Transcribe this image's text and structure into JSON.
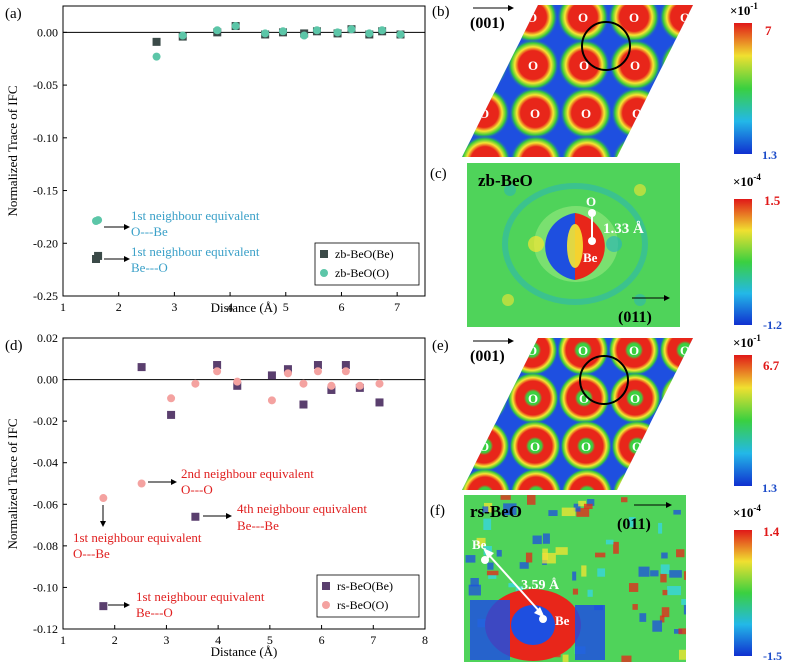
{
  "chart_data": [
    {
      "type": "scatter",
      "panel_label": "(a)",
      "xlabel": "Distance (Å)",
      "ylabel": "Normalized Trace of IFC",
      "xlim": [
        1,
        7.5
      ],
      "ylim": [
        -0.25,
        0.025
      ],
      "x_ticks": [
        "1",
        "2",
        "3",
        "4",
        "5",
        "6",
        "7"
      ],
      "x_tick_values": [
        1,
        2,
        3,
        4,
        5,
        6,
        7
      ],
      "y_ticks": [
        "-0.25",
        "-0.20",
        "-0.15",
        "-0.10",
        "-0.05",
        "0.00"
      ],
      "y_tick_values": [
        -0.25,
        -0.2,
        -0.15,
        -0.1,
        -0.05,
        0.0
      ],
      "legend_position": "lower-right",
      "series": [
        {
          "name": "zb-BeO(Be)",
          "marker": "square",
          "color": "#3b4a48",
          "x": [
            1.63,
            2.68,
            3.15,
            3.77,
            4.1,
            4.63,
            4.95,
            5.33,
            5.56,
            5.93,
            6.18,
            6.5,
            6.73,
            7.06
          ],
          "y": [
            -0.212,
            -0.009,
            -0.004,
            0.0,
            0.006,
            -0.002,
            0.0,
            -0.001,
            0.001,
            -0.001,
            0.003,
            -0.002,
            0.001,
            -0.002
          ]
        },
        {
          "name": "zb-BeO(O)",
          "marker": "circle",
          "color": "#5cc6a8",
          "x": [
            1.63,
            2.68,
            3.15,
            3.77,
            4.1,
            4.63,
            4.95,
            5.33,
            5.56,
            5.93,
            6.18,
            6.5,
            6.73,
            7.06
          ],
          "y": [
            -0.178,
            -0.023,
            -0.003,
            0.002,
            0.006,
            -0.001,
            0.001,
            -0.003,
            0.002,
            0.0,
            0.003,
            -0.001,
            0.002,
            -0.002
          ]
        }
      ],
      "annotations": [
        {
          "line1": "1st neighbour equivalent",
          "line2": "O---Be",
          "color": "#3aa0c8",
          "line2_color": "#3aa0c8"
        },
        {
          "line1": "1st neighbour equivalent",
          "line2": "Be---O",
          "color": "#3aa0c8",
          "line2_color": "#3aa0c8"
        }
      ]
    },
    {
      "type": "scatter",
      "panel_label": "(d)",
      "xlabel": "Distance (Å)",
      "ylabel": "Normalized Trace of IFC",
      "xlim": [
        1,
        8
      ],
      "ylim": [
        -0.12,
        0.02
      ],
      "x_ticks": [
        "1",
        "2",
        "3",
        "4",
        "5",
        "6",
        "7",
        "8"
      ],
      "x_tick_values": [
        1,
        2,
        3,
        4,
        5,
        6,
        7,
        8
      ],
      "y_ticks": [
        "-0.12",
        "-0.10",
        "-0.08",
        "-0.06",
        "-0.04",
        "-0.02",
        "0.00",
        "0.02"
      ],
      "y_tick_values": [
        -0.12,
        -0.1,
        -0.08,
        -0.06,
        -0.04,
        -0.02,
        0.0,
        0.02
      ],
      "legend_position": "lower-right",
      "series": [
        {
          "name": "rs-BeO(Be)",
          "marker": "square",
          "color": "#5a3f6e",
          "x": [
            1.78,
            2.52,
            3.09,
            3.56,
            3.98,
            4.37,
            5.04,
            5.35,
            5.65,
            5.93,
            6.19,
            6.47,
            6.74,
            7.12
          ],
          "y": [
            -0.109,
            0.006,
            -0.017,
            -0.066,
            0.007,
            -0.003,
            0.002,
            0.005,
            -0.012,
            0.007,
            -0.005,
            0.007,
            -0.004,
            -0.011
          ]
        },
        {
          "name": "rs-BeO(O)",
          "marker": "circle",
          "color": "#f4a2a0",
          "x": [
            1.78,
            2.52,
            3.09,
            3.56,
            3.98,
            4.37,
            5.04,
            5.35,
            5.65,
            5.93,
            6.19,
            6.47,
            6.74,
            7.12
          ],
          "y": [
            -0.057,
            -0.05,
            -0.009,
            -0.002,
            0.004,
            -0.001,
            -0.01,
            0.003,
            -0.002,
            0.004,
            -0.003,
            0.004,
            -0.003,
            -0.002
          ]
        }
      ],
      "annotations": [
        {
          "line1": "2nd neighbour equivalent",
          "line2": "O---O",
          "color": "#e02020"
        },
        {
          "line1": "4th neighbour equivalent",
          "line2": "Be---Be",
          "color": "#e02020"
        },
        {
          "line1": "1st neighbour equivalent",
          "line2": "O---Be",
          "color": "#e02020"
        },
        {
          "line1": "1st neighbour equivalent",
          "line2": "Be---O",
          "color": "#e02020"
        }
      ]
    }
  ],
  "panels": {
    "b": {
      "label": "(b)",
      "direction": "(001)",
      "scale_exp": "×10",
      "scale_exp_power": "-1",
      "scale_max": "7",
      "scale_min": "1.3",
      "atom": "O"
    },
    "c": {
      "label": "(c)",
      "title": "zb-BeO",
      "direction": "(011)",
      "scale_exp": "×10",
      "scale_exp_power": "-4",
      "scale_max": "1.5",
      "scale_min": "-1.2",
      "top_atom": "O",
      "bottom_atom": "Be",
      "distance": "1.33 Å"
    },
    "e": {
      "label": "(e)",
      "direction": "(001)",
      "scale_exp": "×10",
      "scale_exp_power": "-1",
      "scale_max": "6.7",
      "scale_min": "1.3",
      "atom": "O"
    },
    "f": {
      "label": "(f)",
      "title": "rs-BeO",
      "direction": "(011)",
      "scale_exp": "×10",
      "scale_exp_power": "-4",
      "scale_max": "1.4",
      "scale_min": "-1.5",
      "atom1": "Be",
      "atom2": "Be",
      "distance": "3.59 Å"
    }
  },
  "colors": {
    "map_bg": "#1e4fe0",
    "map_red": "#e8261a",
    "map_green": "#38c93a",
    "map_yellow": "#f6e632",
    "map_cyan": "#36d6e8"
  }
}
